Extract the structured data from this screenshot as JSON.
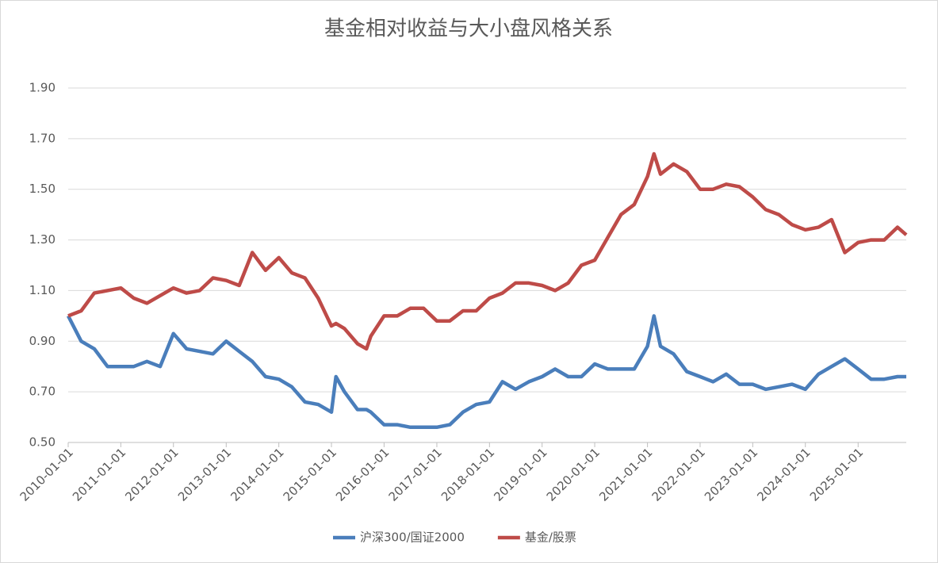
{
  "chart_data": {
    "type": "line",
    "title": "基金相对收益与大小盘风格关系",
    "x": [
      "2010-01-01",
      "2010-04-01",
      "2010-07-01",
      "2010-10-01",
      "2011-01-01",
      "2011-04-01",
      "2011-07-01",
      "2011-10-01",
      "2012-01-01",
      "2012-04-01",
      "2012-07-01",
      "2012-10-01",
      "2013-01-01",
      "2013-04-01",
      "2013-07-01",
      "2013-10-01",
      "2014-01-01",
      "2014-04-01",
      "2014-07-01",
      "2014-10-01",
      "2015-01-01",
      "2015-02-01",
      "2015-04-01",
      "2015-07-01",
      "2015-09-01",
      "2015-10-01",
      "2016-01-01",
      "2016-04-01",
      "2016-07-01",
      "2016-10-01",
      "2017-01-01",
      "2017-04-01",
      "2017-07-01",
      "2017-10-01",
      "2018-01-01",
      "2018-04-01",
      "2018-07-01",
      "2018-10-01",
      "2019-01-01",
      "2019-04-01",
      "2019-07-01",
      "2019-10-01",
      "2020-01-01",
      "2020-04-01",
      "2020-07-01",
      "2020-10-01",
      "2021-01-01",
      "2021-02-15",
      "2021-04-01",
      "2021-07-01",
      "2021-10-01",
      "2022-01-01",
      "2022-04-01",
      "2022-07-01",
      "2022-10-01",
      "2023-01-01",
      "2023-04-01",
      "2023-07-01",
      "2023-10-01",
      "2024-01-01",
      "2024-04-01",
      "2024-07-01",
      "2024-10-01",
      "2025-01-01",
      "2025-04-01",
      "2025-07-01",
      "2025-10-01",
      "2025-12-01"
    ],
    "series": [
      {
        "name": "沪深300/国证2000",
        "color": "#4a7ebb",
        "values": [
          1.0,
          0.9,
          0.87,
          0.8,
          0.8,
          0.8,
          0.82,
          0.8,
          0.93,
          0.87,
          0.86,
          0.85,
          0.9,
          0.86,
          0.82,
          0.76,
          0.75,
          0.72,
          0.66,
          0.65,
          0.62,
          0.76,
          0.7,
          0.63,
          0.63,
          0.62,
          0.57,
          0.57,
          0.56,
          0.56,
          0.56,
          0.57,
          0.62,
          0.65,
          0.66,
          0.74,
          0.71,
          0.74,
          0.76,
          0.79,
          0.76,
          0.76,
          0.81,
          0.79,
          0.79,
          0.79,
          0.88,
          1.0,
          0.88,
          0.85,
          0.78,
          0.76,
          0.74,
          0.77,
          0.73,
          0.73,
          0.71,
          0.72,
          0.73,
          0.71,
          0.77,
          0.8,
          0.83,
          0.79,
          0.75,
          0.75,
          0.76,
          0.76
        ]
      },
      {
        "name": "基金/股票",
        "color": "#be4b48",
        "values": [
          1.0,
          1.02,
          1.09,
          1.1,
          1.11,
          1.07,
          1.05,
          1.08,
          1.11,
          1.09,
          1.1,
          1.15,
          1.14,
          1.12,
          1.25,
          1.18,
          1.23,
          1.17,
          1.15,
          1.07,
          0.96,
          0.97,
          0.95,
          0.89,
          0.87,
          0.92,
          1.0,
          1.0,
          1.03,
          1.03,
          0.98,
          0.98,
          1.02,
          1.02,
          1.07,
          1.09,
          1.13,
          1.13,
          1.12,
          1.1,
          1.13,
          1.2,
          1.22,
          1.31,
          1.4,
          1.44,
          1.55,
          1.64,
          1.56,
          1.6,
          1.57,
          1.5,
          1.5,
          1.52,
          1.51,
          1.47,
          1.42,
          1.4,
          1.36,
          1.34,
          1.35,
          1.38,
          1.25,
          1.29,
          1.3,
          1.3,
          1.35,
          1.32
        ]
      }
    ],
    "xlim": [
      "2010-01-01",
      "2025-12-01"
    ],
    "xticks": [
      "2010-01-01",
      "2011-01-01",
      "2012-01-01",
      "2013-01-01",
      "2014-01-01",
      "2015-01-01",
      "2016-01-01",
      "2017-01-01",
      "2018-01-01",
      "2019-01-01",
      "2020-01-01",
      "2021-01-01",
      "2022-01-01",
      "2023-01-01",
      "2024-01-01",
      "2025-01-01"
    ],
    "ylim": [
      0.5,
      1.9
    ],
    "yticks": [
      {
        "value": 0.5,
        "label": "0.50"
      },
      {
        "value": 0.7,
        "label": "0.70"
      },
      {
        "value": 0.9,
        "label": "0.90"
      },
      {
        "value": 1.1,
        "label": "1.10"
      },
      {
        "value": 1.3,
        "label": "1.30"
      },
      {
        "value": 1.5,
        "label": "1.50"
      },
      {
        "value": 1.7,
        "label": "1.70"
      },
      {
        "value": 1.9,
        "label": "1.90"
      }
    ],
    "grid": true,
    "legend": "bottom"
  }
}
